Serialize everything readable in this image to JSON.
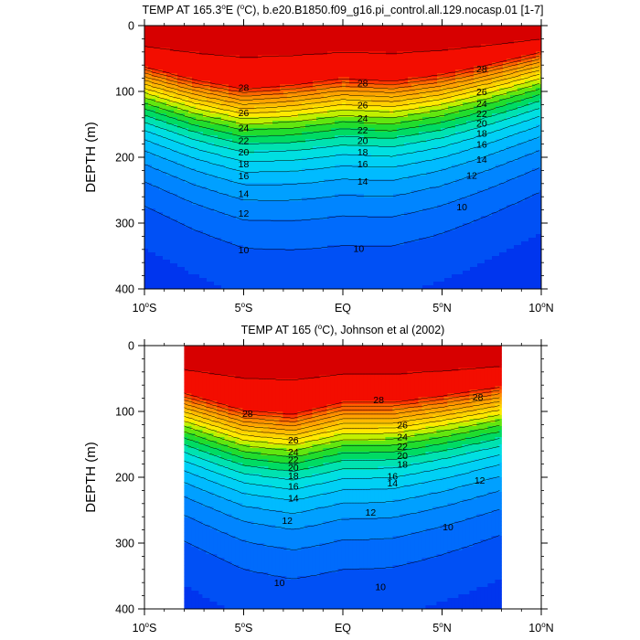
{
  "chart_data": [
    {
      "type": "heatmap",
      "title": "TEMP AT 165.3°E (°C), b.e20.B1850.f09_g16.pi_control.all.129.nocasp.01 [1-7]",
      "title_parts": {
        "pre": "TEMP AT 165.3",
        "deg1": "o",
        "mid": "E (",
        "deg2": "o",
        "post": "C), b.e20.B1850.f09_g16.pi_control.all.129.nocasp.01 [1-7]"
      },
      "ylabel": "DEPTH (m)",
      "xlim": [
        -10,
        10
      ],
      "ylim": [
        0,
        400
      ],
      "y_reversed": true,
      "x_ticks": [
        {
          "value": -10,
          "num": "10",
          "deg": "o",
          "dir": "S"
        },
        {
          "value": -5,
          "num": "5",
          "deg": "o",
          "dir": "S"
        },
        {
          "value": 0,
          "num": "EQ",
          "deg": "",
          "dir": ""
        },
        {
          "value": 5,
          "num": "5",
          "deg": "o",
          "dir": "N"
        },
        {
          "value": 10,
          "num": "10",
          "deg": "o",
          "dir": "N"
        }
      ],
      "y_ticks": [
        0,
        100,
        200,
        300,
        400
      ],
      "contour_interval": 1,
      "data_extent": [
        -10,
        10
      ],
      "thermocline_depth_28C": [
        {
          "lat": -10,
          "depth": 62
        },
        {
          "lat": -7.5,
          "depth": 82
        },
        {
          "lat": -5,
          "depth": 96
        },
        {
          "lat": -2.5,
          "depth": 90
        },
        {
          "lat": 0,
          "depth": 80
        },
        {
          "lat": 2.5,
          "depth": 84
        },
        {
          "lat": 5,
          "depth": 74
        },
        {
          "lat": 7.5,
          "depth": 58
        },
        {
          "lat": 10,
          "depth": 40
        }
      ],
      "contour_labels": [
        {
          "value": "28",
          "lat": -5.0,
          "depth": 94
        },
        {
          "value": "28",
          "lat": 1.0,
          "depth": 87
        },
        {
          "value": "28",
          "lat": 7.0,
          "depth": 65
        },
        {
          "value": "26",
          "lat": -5.0,
          "depth": 132
        },
        {
          "value": "26",
          "lat": 1.0,
          "depth": 120
        },
        {
          "value": "26",
          "lat": 7.0,
          "depth": 100
        },
        {
          "value": "24",
          "lat": -5.0,
          "depth": 155
        },
        {
          "value": "24",
          "lat": 1.0,
          "depth": 140
        },
        {
          "value": "24",
          "lat": 7.0,
          "depth": 118
        },
        {
          "value": "22",
          "lat": -5.0,
          "depth": 174
        },
        {
          "value": "22",
          "lat": 1.0,
          "depth": 158
        },
        {
          "value": "22",
          "lat": 7.0,
          "depth": 133
        },
        {
          "value": "20",
          "lat": -5.0,
          "depth": 192
        },
        {
          "value": "20",
          "lat": 1.0,
          "depth": 174
        },
        {
          "value": "20",
          "lat": 7.0,
          "depth": 148
        },
        {
          "value": "18",
          "lat": -5.0,
          "depth": 210
        },
        {
          "value": "18",
          "lat": 1.0,
          "depth": 192
        },
        {
          "value": "18",
          "lat": 7.0,
          "depth": 163
        },
        {
          "value": "16",
          "lat": -5.0,
          "depth": 228
        },
        {
          "value": "16",
          "lat": 1.0,
          "depth": 210
        },
        {
          "value": "16",
          "lat": 7.0,
          "depth": 180
        },
        {
          "value": "14",
          "lat": -5.0,
          "depth": 255
        },
        {
          "value": "14",
          "lat": 1.0,
          "depth": 236
        },
        {
          "value": "14",
          "lat": 7.0,
          "depth": 203
        },
        {
          "value": "12",
          "lat": -5.0,
          "depth": 285
        },
        {
          "value": "12",
          "lat": 6.5,
          "depth": 227
        },
        {
          "value": "10",
          "lat": -5.0,
          "depth": 340
        },
        {
          "value": "10",
          "lat": 0.8,
          "depth": 338
        },
        {
          "value": "10",
          "lat": 6.0,
          "depth": 275
        }
      ]
    },
    {
      "type": "heatmap",
      "title": "TEMP AT 165 (°C), Johnson et al (2002)",
      "title_parts": {
        "pre": "TEMP AT 165 (",
        "deg1": "o",
        "mid": "",
        "deg2": "",
        "post": "C), Johnson et al (2002)"
      },
      "ylabel": "DEPTH (m)",
      "xlim": [
        -10,
        10
      ],
      "ylim": [
        0,
        400
      ],
      "y_reversed": true,
      "x_ticks": [
        {
          "value": -10,
          "num": "10",
          "deg": "o",
          "dir": "S"
        },
        {
          "value": -5,
          "num": "5",
          "deg": "o",
          "dir": "S"
        },
        {
          "value": 0,
          "num": "EQ",
          "deg": "",
          "dir": ""
        },
        {
          "value": 5,
          "num": "5",
          "deg": "o",
          "dir": "N"
        },
        {
          "value": 10,
          "num": "10",
          "deg": "o",
          "dir": "N"
        }
      ],
      "y_ticks": [
        0,
        100,
        200,
        300,
        400
      ],
      "contour_interval": 1,
      "data_extent": [
        -8,
        8
      ],
      "thermocline_depth_28C": [
        {
          "lat": -8,
          "depth": 72
        },
        {
          "lat": -5,
          "depth": 98
        },
        {
          "lat": -2.5,
          "depth": 104
        },
        {
          "lat": 0,
          "depth": 86
        },
        {
          "lat": 2.5,
          "depth": 86
        },
        {
          "lat": 5,
          "depth": 76
        },
        {
          "lat": 8,
          "depth": 62
        }
      ],
      "contour_labels": [
        {
          "value": "28",
          "lat": -4.8,
          "depth": 103
        },
        {
          "value": "28",
          "lat": 1.8,
          "depth": 82
        },
        {
          "value": "28",
          "lat": 6.8,
          "depth": 78
        },
        {
          "value": "26",
          "lat": -2.5,
          "depth": 143
        },
        {
          "value": "26",
          "lat": 3.0,
          "depth": 120
        },
        {
          "value": "24",
          "lat": -2.5,
          "depth": 161
        },
        {
          "value": "24",
          "lat": 3.0,
          "depth": 138
        },
        {
          "value": "22",
          "lat": -2.5,
          "depth": 173
        },
        {
          "value": "22",
          "lat": 3.0,
          "depth": 153
        },
        {
          "value": "20",
          "lat": -2.5,
          "depth": 185
        },
        {
          "value": "20",
          "lat": 3.0,
          "depth": 167
        },
        {
          "value": "18",
          "lat": -2.5,
          "depth": 197
        },
        {
          "value": "18",
          "lat": 3.0,
          "depth": 180
        },
        {
          "value": "16",
          "lat": -2.5,
          "depth": 213
        },
        {
          "value": "16",
          "lat": 2.5,
          "depth": 198
        },
        {
          "value": "14",
          "lat": -2.5,
          "depth": 231
        },
        {
          "value": "14",
          "lat": 2.5,
          "depth": 208
        },
        {
          "value": "12",
          "lat": -2.8,
          "depth": 265
        },
        {
          "value": "12",
          "lat": 1.4,
          "depth": 253
        },
        {
          "value": "12",
          "lat": 6.9,
          "depth": 204
        },
        {
          "value": "10",
          "lat": 5.3,
          "depth": 275
        },
        {
          "value": "10",
          "lat": -3.2,
          "depth": 360
        },
        {
          "value": "10",
          "lat": 1.9,
          "depth": 366
        }
      ]
    }
  ]
}
